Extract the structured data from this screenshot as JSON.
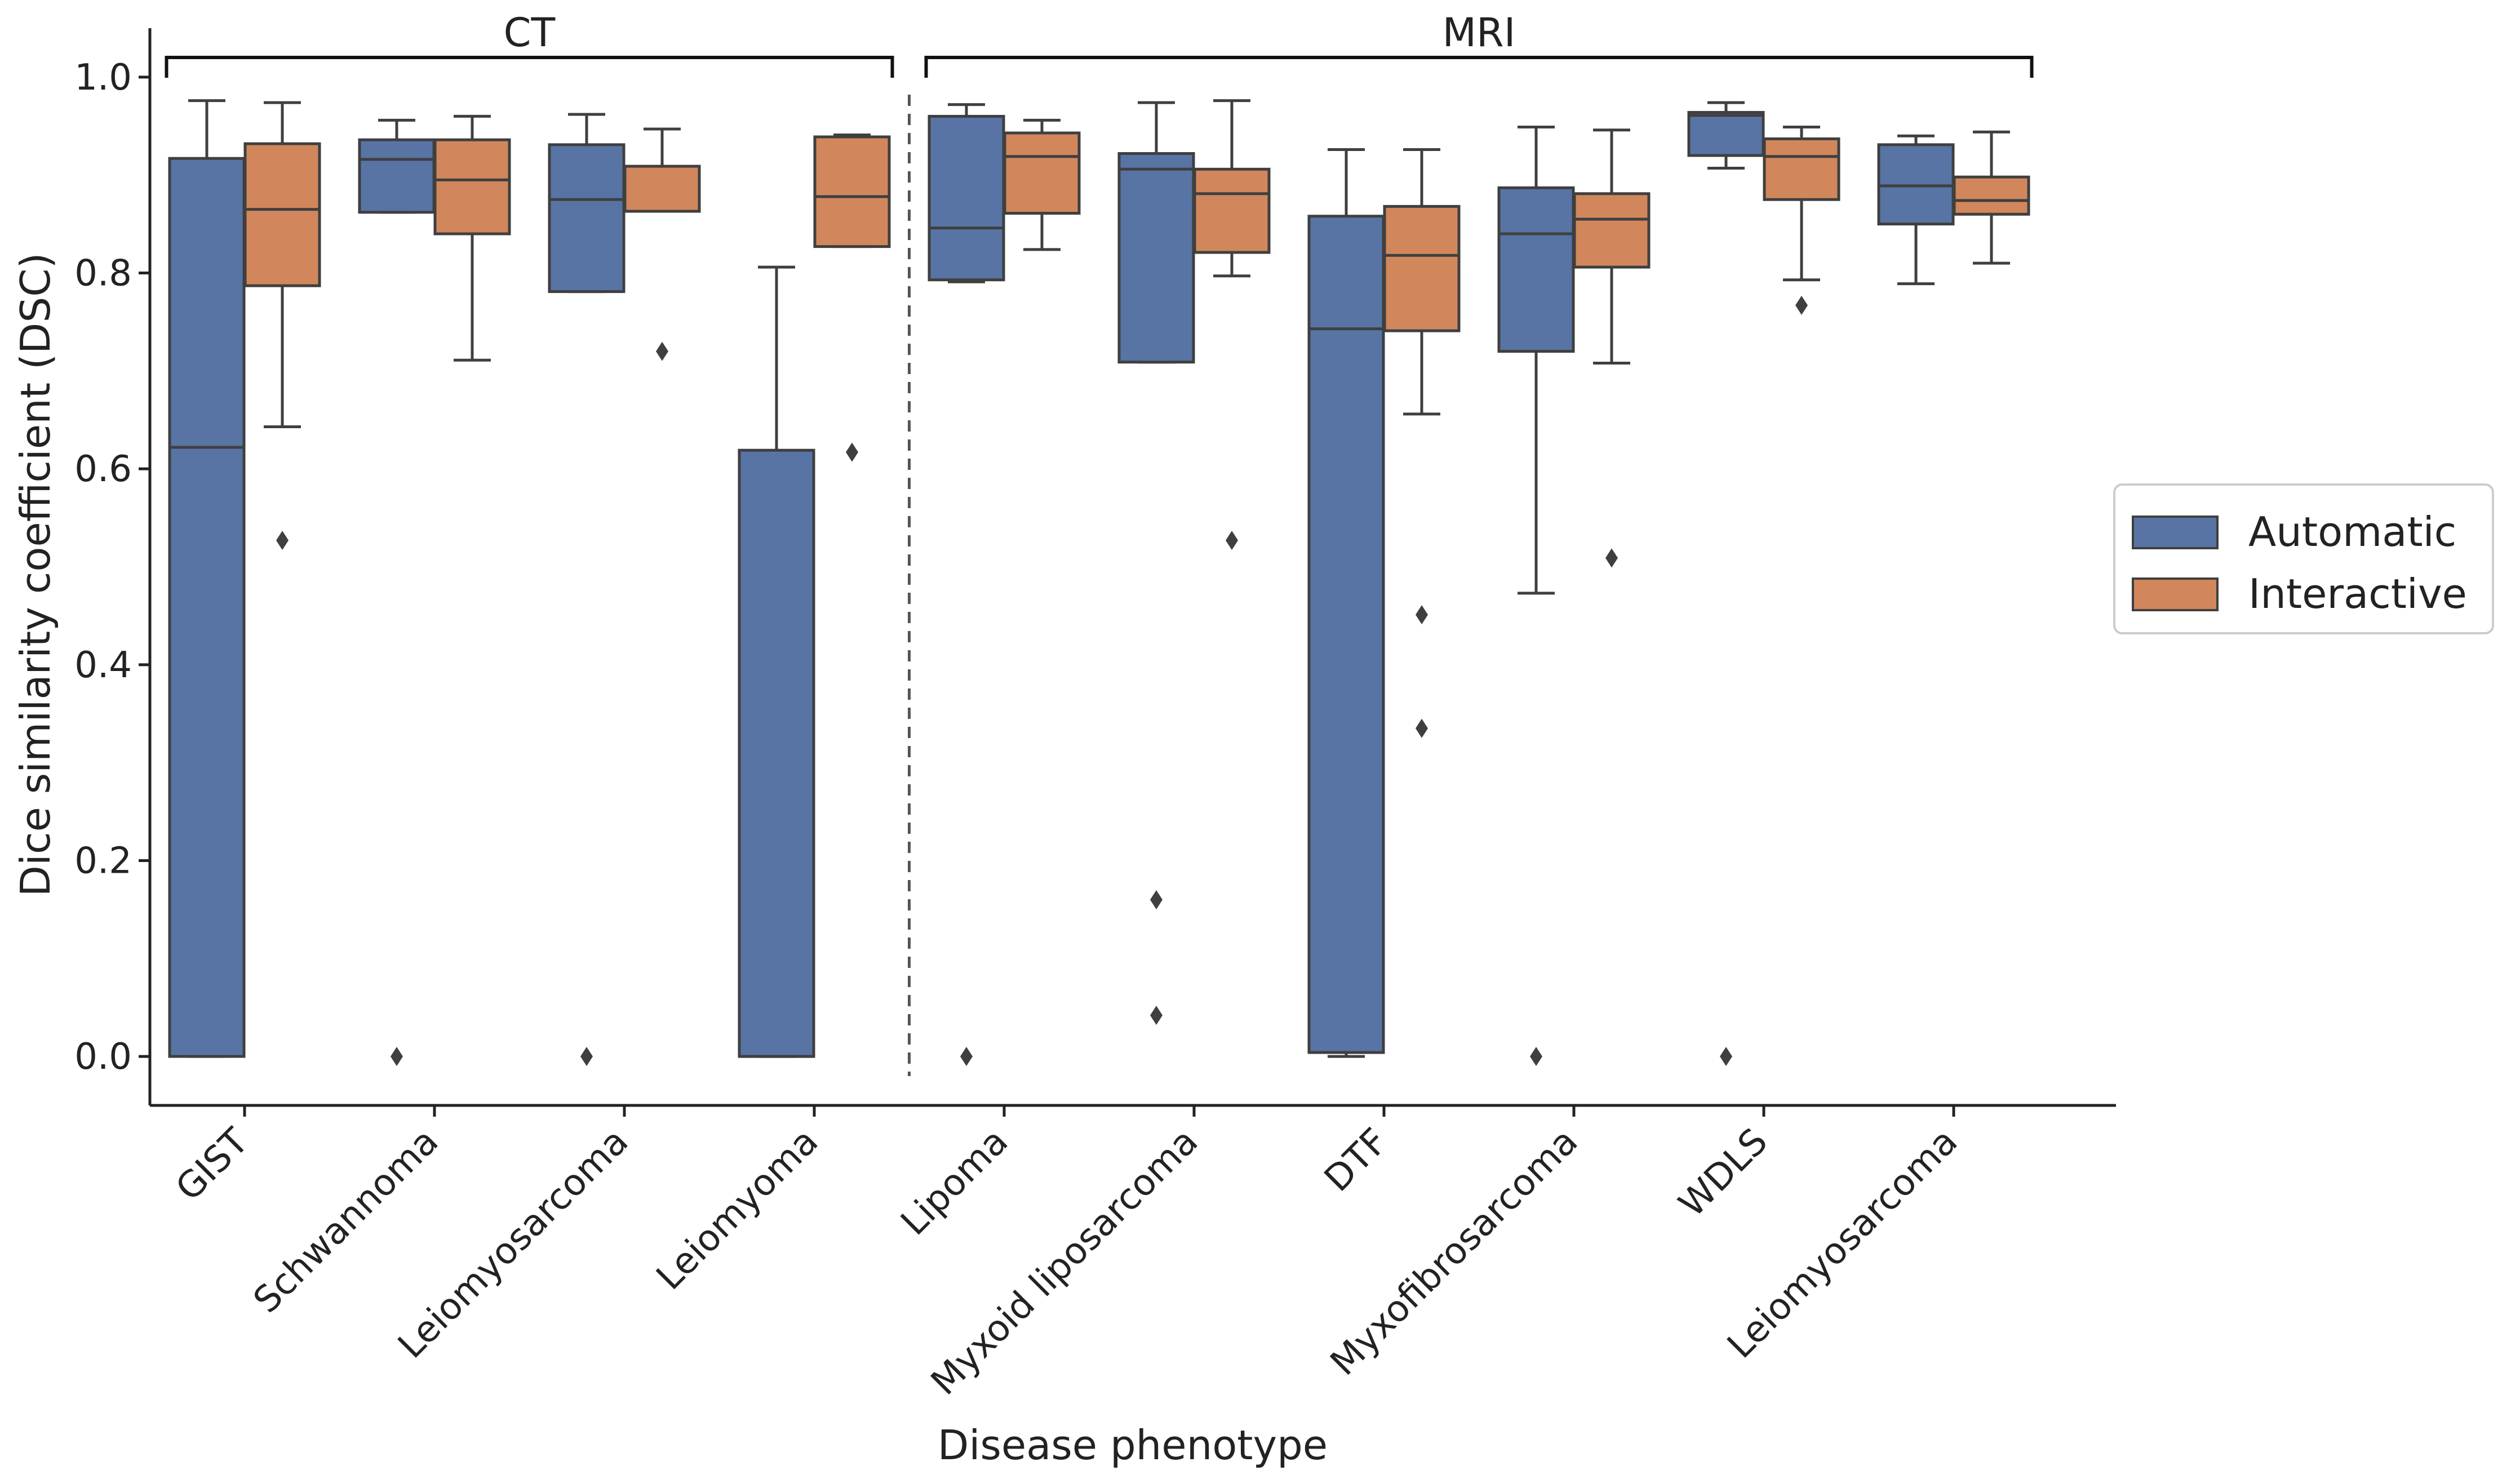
{
  "chart_data": {
    "type": "box",
    "xlabel": "Disease phenotype",
    "ylabel": "Dice similarity coefficient (DSC)",
    "ylim": [
      -0.05,
      1.05
    ],
    "yticks": [
      "0.0",
      "0.2",
      "0.4",
      "0.6",
      "0.8",
      "1.0"
    ],
    "groups": [
      {
        "label": "CT",
        "categories": [
          "GIST",
          "Schwannoma",
          "Leiomyosarcoma",
          "Leiomyoma"
        ]
      },
      {
        "label": "MRI",
        "categories": [
          "Lipoma",
          "Myxoid liposarcoma",
          "DTF",
          "Myxofibrosarcoma",
          "WDLS",
          "Leiomyosarcoma"
        ]
      }
    ],
    "categories": [
      "GIST",
      "Schwannoma",
      "Leiomyosarcoma",
      "Leiomyoma",
      "Lipoma",
      "Myxoid liposarcoma",
      "DTF",
      "Myxofibrosarcoma",
      "WDLS",
      "Leiomyosarcoma"
    ],
    "legend": {
      "placement": "right"
    },
    "series": [
      {
        "name": "Automatic",
        "color": "#5874a5",
        "boxes": [
          {
            "whisker_low": 0.0,
            "q1": 0.0,
            "median": 0.622,
            "q3": 0.917,
            "whisker_high": 0.976,
            "outliers": []
          },
          {
            "whisker_low": 0.862,
            "q1": 0.862,
            "median": 0.916,
            "q3": 0.936,
            "whisker_high": 0.956,
            "outliers": [
              0.0
            ]
          },
          {
            "whisker_low": 0.781,
            "q1": 0.781,
            "median": 0.875,
            "q3": 0.931,
            "whisker_high": 0.962,
            "outliers": [
              0.0
            ]
          },
          {
            "whisker_low": 0.0,
            "q1": 0.0,
            "median": 0.0,
            "q3": 0.619,
            "whisker_high": 0.806,
            "outliers": []
          },
          {
            "whisker_low": 0.791,
            "q1": 0.793,
            "median": 0.846,
            "q3": 0.96,
            "whisker_high": 0.972,
            "outliers": [
              0.0
            ]
          },
          {
            "whisker_low": 0.709,
            "q1": 0.709,
            "median": 0.906,
            "q3": 0.922,
            "whisker_high": 0.974,
            "outliers": [
              0.16,
              0.042
            ]
          },
          {
            "whisker_low": 0.0,
            "q1": 0.004,
            "median": 0.743,
            "q3": 0.858,
            "whisker_high": 0.926,
            "outliers": []
          },
          {
            "whisker_low": 0.473,
            "q1": 0.72,
            "median": 0.84,
            "q3": 0.887,
            "whisker_high": 0.949,
            "outliers": [
              0.0
            ]
          },
          {
            "whisker_low": 0.907,
            "q1": 0.92,
            "median": 0.961,
            "q3": 0.964,
            "whisker_high": 0.974,
            "outliers": [
              0.0
            ]
          },
          {
            "whisker_low": 0.789,
            "q1": 0.85,
            "median": 0.889,
            "q3": 0.931,
            "whisker_high": 0.94,
            "outliers": []
          }
        ]
      },
      {
        "name": "Interactive",
        "color": "#d1875b",
        "boxes": [
          {
            "whisker_low": 0.643,
            "q1": 0.787,
            "median": 0.865,
            "q3": 0.932,
            "whisker_high": 0.974,
            "outliers": [
              0.527
            ]
          },
          {
            "whisker_low": 0.711,
            "q1": 0.84,
            "median": 0.895,
            "q3": 0.936,
            "whisker_high": 0.96,
            "outliers": []
          },
          {
            "whisker_low": 0.863,
            "q1": 0.863,
            "median": 0.863,
            "q3": 0.909,
            "whisker_high": 0.947,
            "outliers": [
              0.72
            ]
          },
          {
            "whisker_low": 0.827,
            "q1": 0.827,
            "median": 0.878,
            "q3": 0.939,
            "whisker_high": 0.941,
            "outliers": [
              0.617
            ]
          },
          {
            "whisker_low": 0.824,
            "q1": 0.861,
            "median": 0.919,
            "q3": 0.943,
            "whisker_high": 0.956,
            "outliers": []
          },
          {
            "whisker_low": 0.797,
            "q1": 0.821,
            "median": 0.881,
            "q3": 0.906,
            "whisker_high": 0.976,
            "outliers": [
              0.527
            ]
          },
          {
            "whisker_low": 0.656,
            "q1": 0.741,
            "median": 0.818,
            "q3": 0.868,
            "whisker_high": 0.926,
            "outliers": [
              0.451,
              0.335
            ]
          },
          {
            "whisker_low": 0.708,
            "q1": 0.806,
            "median": 0.855,
            "q3": 0.881,
            "whisker_high": 0.946,
            "outliers": [
              0.509
            ]
          },
          {
            "whisker_low": 0.793,
            "q1": 0.875,
            "median": 0.919,
            "q3": 0.937,
            "whisker_high": 0.949,
            "outliers": [
              0.767
            ]
          },
          {
            "whisker_low": 0.81,
            "q1": 0.86,
            "median": 0.874,
            "q3": 0.898,
            "whisker_high": 0.944,
            "outliers": []
          }
        ]
      }
    ]
  }
}
